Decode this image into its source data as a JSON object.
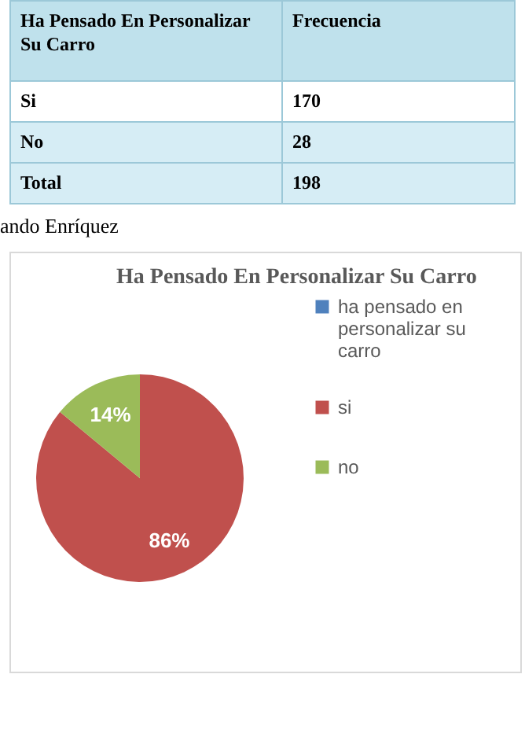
{
  "chart_data": [
    {
      "type": "other",
      "annotations": [
        "Ha Pensado En Personalizar Su Carro",
        "Frecuencia",
        "Si",
        "170",
        "No",
        "28",
        "Total",
        "198",
        "ando Enríquez"
      ]
    },
    {
      "type": "pie",
      "title": "Ha Pensado En Personalizar Su Carro",
      "categories": [
        "ha pensado en personalizar su carro",
        "si",
        "no"
      ],
      "values": [
        0,
        86,
        14
      ],
      "colors": [
        "#4f81bd",
        "#c0504d",
        "#9bbb59"
      ],
      "value_labels": [
        null,
        "86%",
        "14%"
      ],
      "legend": "right"
    }
  ]
}
